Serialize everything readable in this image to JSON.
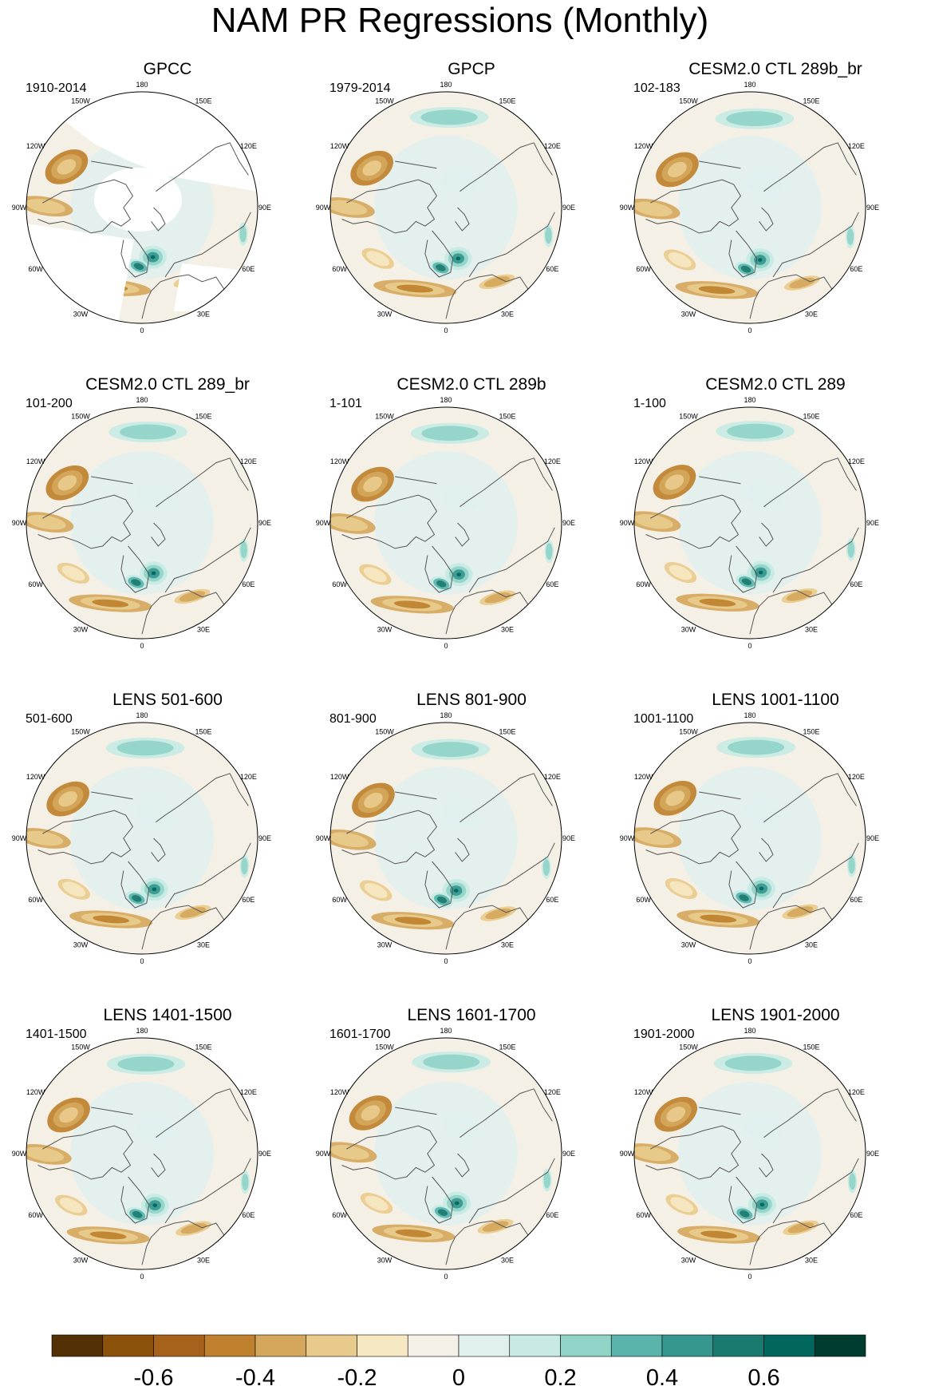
{
  "title": "NAM PR Regressions (Monthly)",
  "longitude_labels": [
    "180",
    "150E",
    "120E",
    "90E",
    "60E",
    "30E",
    "0",
    "30W",
    "60W",
    "90W",
    "120W",
    "150W"
  ],
  "panels": [
    {
      "title": "GPCC",
      "years": "1910-2014",
      "observational_mask": true
    },
    {
      "title": "GPCP",
      "years": "1979-2014"
    },
    {
      "title": "CESM2.0 CTL 289b_br",
      "years": "102-183"
    },
    {
      "title": "CESM2.0 CTL 289_br",
      "years": "101-200"
    },
    {
      "title": "CESM2.0 CTL 289b",
      "years": "1-101"
    },
    {
      "title": "CESM2.0 CTL 289",
      "years": "1-100"
    },
    {
      "title": "LENS 501-600",
      "years": "501-600"
    },
    {
      "title": "LENS 801-900",
      "years": "801-900"
    },
    {
      "title": "LENS 1001-1100",
      "years": "1001-1100"
    },
    {
      "title": "LENS 1401-1500",
      "years": "1401-1500"
    },
    {
      "title": "LENS 1601-1700",
      "years": "1601-1700"
    },
    {
      "title": "LENS 1901-2000",
      "years": "1901-2000"
    }
  ],
  "colorbar": {
    "levels": [
      -0.7,
      -0.6,
      -0.5,
      -0.4,
      -0.3,
      -0.2,
      -0.1,
      0,
      0.1,
      0.2,
      0.3,
      0.4,
      0.5,
      0.6,
      0.7
    ],
    "colors": [
      "#543005",
      "#8c510a",
      "#a6611a",
      "#bf812d",
      "#d4a75c",
      "#e8cb8c",
      "#f6e8c3",
      "#f5f0e6",
      "#e0f0ee",
      "#c7eae5",
      "#91d3c7",
      "#5ab4ac",
      "#35978f",
      "#1b7a6f",
      "#01665e",
      "#003c30"
    ],
    "labels": [
      "-0.6",
      "-0.4",
      "-0.2",
      "0",
      "0.2",
      "0.4",
      "0.6"
    ]
  },
  "colors": {
    "land_outline": "#555555",
    "map_border": "#000000",
    "background_neutral": "#f5f0e6"
  }
}
